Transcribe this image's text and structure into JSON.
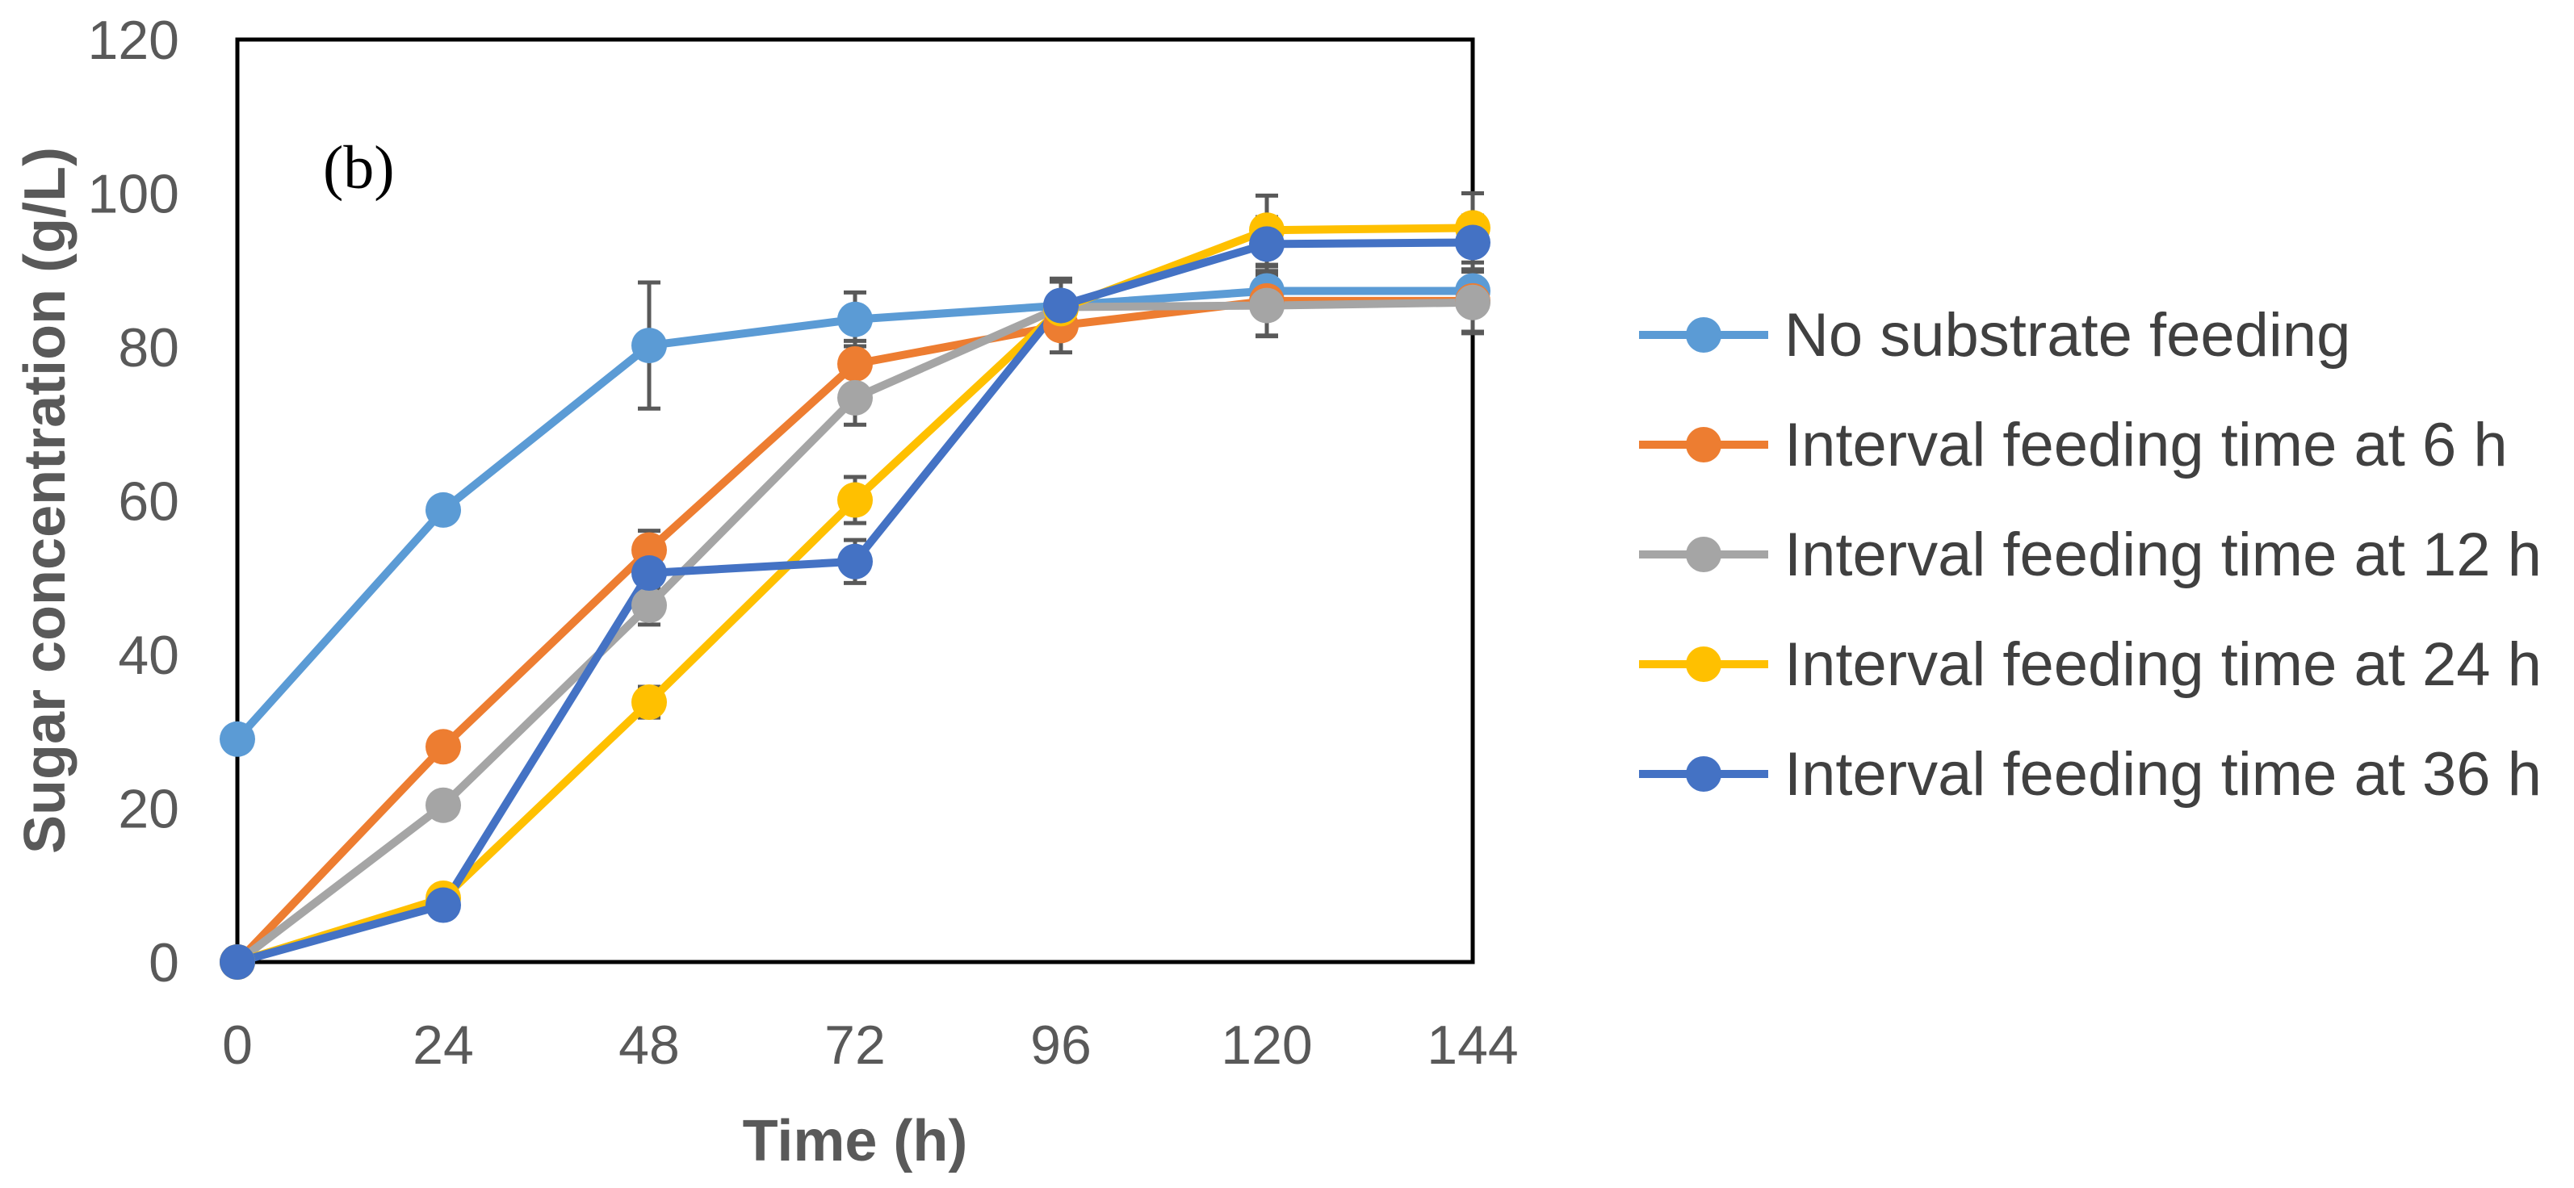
{
  "chart_data": {
    "type": "line",
    "panel_label": "(b)",
    "xlabel": "Time (h)",
    "ylabel": "Sugar concentration (g/L)",
    "x": [
      0,
      24,
      48,
      72,
      96,
      120,
      144
    ],
    "x_tick_labels": [
      "0",
      "24",
      "48",
      "72",
      "96",
      "120",
      "144"
    ],
    "xlim": [
      0,
      144
    ],
    "ylim": [
      0,
      120
    ],
    "y_ticks": [
      0,
      20,
      40,
      60,
      80,
      100,
      120
    ],
    "y_tick_labels": [
      "0",
      "20",
      "40",
      "60",
      "80",
      "100",
      "120"
    ],
    "grid": false,
    "legend_position": "right",
    "series": [
      {
        "name": "No substrate feeding",
        "color": "#5B9BD5",
        "values": [
          29.0,
          58.8,
          80.2,
          83.6,
          85.4,
          87.3,
          87.3
        ],
        "errors": [
          0,
          0,
          8.2,
          3.5,
          0,
          0,
          0
        ]
      },
      {
        "name": "Interval feeding time at 6 h",
        "color": "#ED7D31",
        "values": [
          0.0,
          28.0,
          53.6,
          77.8,
          82.8,
          86.0,
          86.0
        ],
        "errors": [
          0,
          0,
          2.5,
          3.0,
          3.5,
          4.5,
          4.0
        ]
      },
      {
        "name": "Interval feeding time at 12 h",
        "color": "#A5A5A5",
        "values": [
          0.0,
          20.4,
          46.4,
          73.4,
          85.2,
          85.4,
          85.8
        ],
        "errors": [
          0,
          0,
          2.5,
          3.5,
          3.5,
          4.0,
          4.0
        ]
      },
      {
        "name": "Interval feeding time at 24 h",
        "color": "#FFC000",
        "values": [
          0.0,
          8.3,
          33.8,
          60.1,
          85.0,
          95.2,
          95.5
        ],
        "errors": [
          0,
          0,
          2.0,
          3.0,
          3.5,
          4.5,
          4.5
        ]
      },
      {
        "name": "Interval feeding time at 36 h",
        "color": "#4472C4",
        "values": [
          0.0,
          7.4,
          50.6,
          52.1,
          85.4,
          93.4,
          93.6
        ],
        "errors": [
          0,
          0,
          2.0,
          2.8,
          3.5,
          3.5,
          3.5
        ]
      }
    ]
  }
}
